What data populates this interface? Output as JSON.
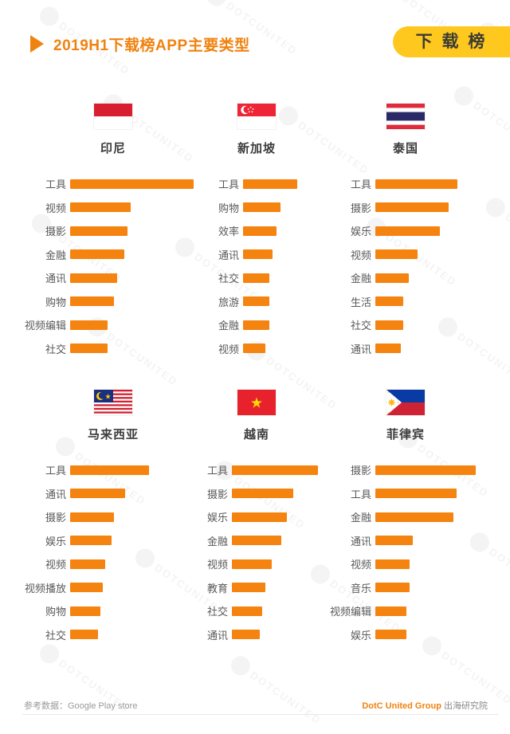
{
  "header": {
    "title": "2019H1下载榜APP主要类型",
    "badge": "下 载 榜"
  },
  "watermark": {
    "text": "DOTCUNITED"
  },
  "footer": {
    "source": "参考数据：Google Play store",
    "brand": "DotC United Group",
    "suffix": "出海研究院"
  },
  "colors": {
    "bar": "#F5830F",
    "title_orange": "#F0820F",
    "badge_yellow": "#FFC81E",
    "badge_text": "#3A3B35"
  },
  "chart_data": [
    {
      "type": "bar",
      "orientation": "horizontal",
      "country": "印尼",
      "flag": "indonesia",
      "unit": "relative_length_px",
      "grid": false,
      "legend": false,
      "categories": [
        "工具",
        "视频",
        "摄影",
        "金融",
        "通讯",
        "购物",
        "视频编辑",
        "社交"
      ],
      "values": [
        155,
        76,
        72,
        68,
        59,
        55,
        47,
        47
      ]
    },
    {
      "type": "bar",
      "orientation": "horizontal",
      "country": "新加坡",
      "flag": "singapore",
      "unit": "relative_length_px",
      "grid": false,
      "legend": false,
      "categories": [
        "工具",
        "购物",
        "效率",
        "通讯",
        "社交",
        "旅游",
        "金融",
        "视频"
      ],
      "values": [
        68,
        47,
        42,
        37,
        33,
        33,
        33,
        28
      ]
    },
    {
      "type": "bar",
      "orientation": "horizontal",
      "country": "泰国",
      "flag": "thailand",
      "unit": "relative_length_px",
      "grid": false,
      "legend": false,
      "categories": [
        "工具",
        "摄影",
        "娱乐",
        "视频",
        "金融",
        "生活",
        "社交",
        "通讯"
      ],
      "values": [
        103,
        92,
        81,
        53,
        42,
        35,
        35,
        32
      ]
    },
    {
      "type": "bar",
      "orientation": "horizontal",
      "country": "马来西亚",
      "flag": "malaysia",
      "unit": "relative_length_px",
      "grid": false,
      "legend": false,
      "categories": [
        "工具",
        "通讯",
        "摄影",
        "娱乐",
        "视频",
        "视频播放",
        "购物",
        "社交"
      ],
      "values": [
        99,
        69,
        55,
        52,
        44,
        41,
        38,
        35
      ]
    },
    {
      "type": "bar",
      "orientation": "horizontal",
      "country": "越南",
      "flag": "vietnam",
      "unit": "relative_length_px",
      "grid": false,
      "legend": false,
      "categories": [
        "工具",
        "摄影",
        "娱乐",
        "金融",
        "视频",
        "教育",
        "社交",
        "通讯"
      ],
      "values": [
        108,
        77,
        69,
        62,
        50,
        42,
        38,
        35
      ]
    },
    {
      "type": "bar",
      "orientation": "horizontal",
      "country": "菲律宾",
      "flag": "philippines",
      "unit": "relative_length_px",
      "grid": false,
      "legend": false,
      "categories": [
        "摄影",
        "工具",
        "金融",
        "通讯",
        "视频",
        "音乐",
        "视频编辑",
        "娱乐"
      ],
      "values": [
        126,
        102,
        98,
        47,
        43,
        43,
        39,
        39
      ]
    }
  ]
}
